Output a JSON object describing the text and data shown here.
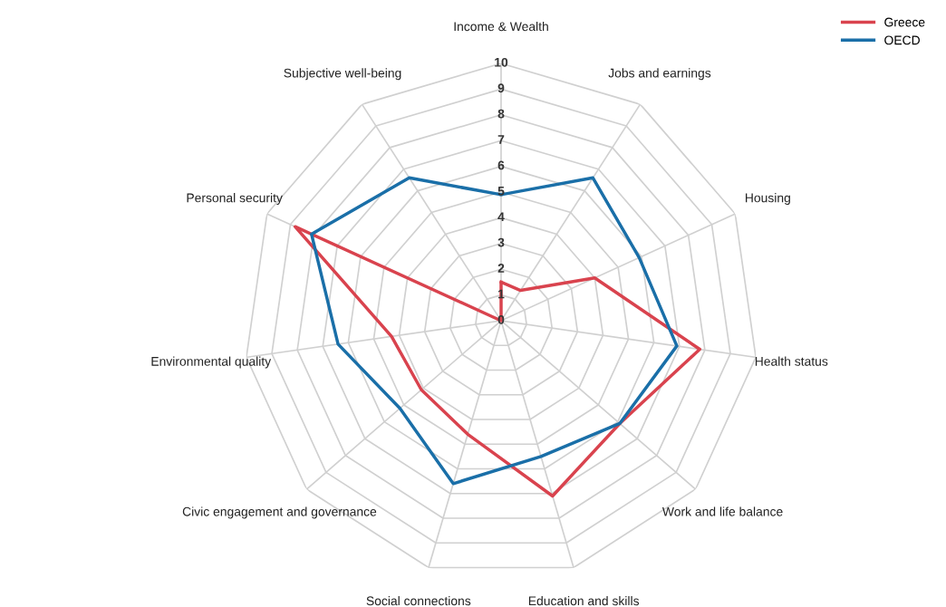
{
  "chart_data": {
    "type": "radar",
    "categories": [
      "Income & Wealth",
      "Jobs and earnings",
      "Housing",
      "Health status",
      "Work and life balance",
      "Education and skills",
      "Social connections",
      "Civic engagement and governance",
      "Environmental quality",
      "Personal security",
      "Subjective well-being"
    ],
    "series": [
      {
        "name": "Greece",
        "color": "#d9434e",
        "values": [
          1.5,
          1.4,
          4.0,
          7.8,
          6.1,
          7.1,
          4.6,
          4.1,
          4.3,
          8.8,
          0
        ]
      },
      {
        "name": "OECD",
        "color": "#1a6fa8",
        "values": [
          4.9,
          6.6,
          5.9,
          6.9,
          6.1,
          5.5,
          6.6,
          5.2,
          6.4,
          8.1,
          6.6
        ]
      }
    ],
    "ylim": [
      0,
      10
    ],
    "yticks": [
      0,
      1,
      2,
      3,
      4,
      5,
      6,
      7,
      8,
      9,
      10
    ],
    "grid": true,
    "legend": "top right",
    "marker": "none",
    "line_style": "solid"
  }
}
